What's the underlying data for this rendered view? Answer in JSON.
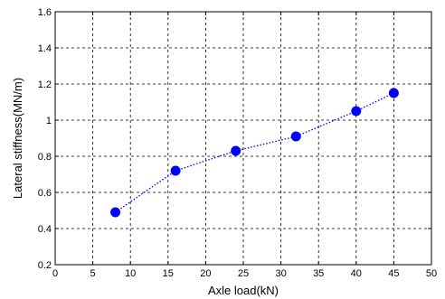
{
  "chart_data": {
    "type": "line",
    "title": "",
    "xlabel": "Axle load(kN)",
    "ylabel": "Lateral stiffness(MN/m)",
    "xlim": [
      0,
      50
    ],
    "ylim": [
      0.2,
      1.6
    ],
    "xticks": [
      "0",
      "5",
      "10",
      "15",
      "20",
      "25",
      "30",
      "35",
      "40",
      "45",
      "50"
    ],
    "yticks": [
      "0.2",
      "0.4",
      "0.6",
      "0.8",
      "1",
      "1.2",
      "1.4",
      "1.6"
    ],
    "grid": true,
    "series": [
      {
        "x": [
          8,
          16,
          24,
          32,
          40,
          45
        ],
        "y": [
          0.49,
          0.72,
          0.83,
          0.91,
          1.05,
          1.15
        ],
        "color": "#0000ff",
        "line_style": "dotted",
        "marker": "circle"
      }
    ]
  }
}
